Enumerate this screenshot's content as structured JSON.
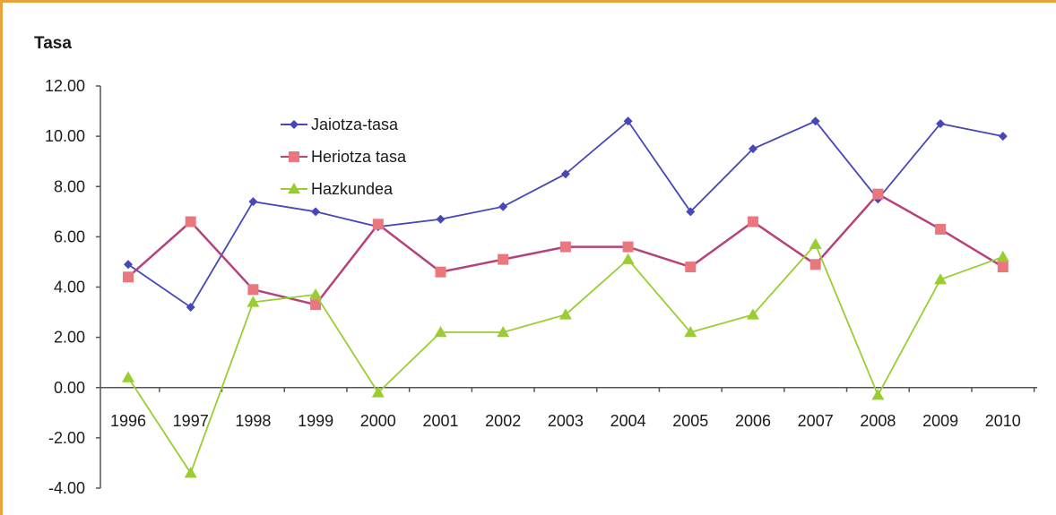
{
  "chart_data": {
    "type": "line",
    "ylabel": "Tasa",
    "xlabel": "",
    "title": "",
    "ylim": [
      -4,
      12
    ],
    "yticks": [
      "12.00",
      "10.00",
      "8.00",
      "6.00",
      "4.00",
      "2.00",
      "0.00",
      "-2.00",
      "-4.00"
    ],
    "ytick_values": [
      12,
      10,
      8,
      6,
      4,
      2,
      0,
      -2,
      -4
    ],
    "categories": [
      "1996",
      "1997",
      "1998",
      "1999",
      "2000",
      "2001",
      "2002",
      "2003",
      "2004",
      "2005",
      "2006",
      "2007",
      "2008",
      "2009",
      "2010"
    ],
    "grid": false,
    "legend_position": "top-left",
    "series": [
      {
        "name": "Jaiotza-tasa",
        "color": "#4747b8",
        "marker": "diamond",
        "values": [
          4.9,
          3.2,
          7.4,
          7.0,
          6.4,
          6.7,
          7.2,
          8.5,
          10.6,
          7.0,
          9.5,
          10.6,
          7.5,
          10.5,
          10.0
        ]
      },
      {
        "name": "Heriotza tasa",
        "color": "#b5427a",
        "marker_color": "#e8777e",
        "marker": "square",
        "values": [
          4.4,
          6.6,
          3.9,
          3.3,
          6.5,
          4.6,
          5.1,
          5.6,
          5.6,
          4.8,
          6.6,
          4.9,
          7.7,
          6.3,
          4.8
        ]
      },
      {
        "name": "Hazkundea",
        "color": "#9acd32",
        "marker": "triangle",
        "values": [
          0.4,
          -3.4,
          3.4,
          3.7,
          -0.2,
          2.2,
          2.2,
          2.9,
          5.1,
          2.2,
          2.9,
          5.7,
          -0.3,
          4.3,
          5.2
        ]
      }
    ]
  }
}
